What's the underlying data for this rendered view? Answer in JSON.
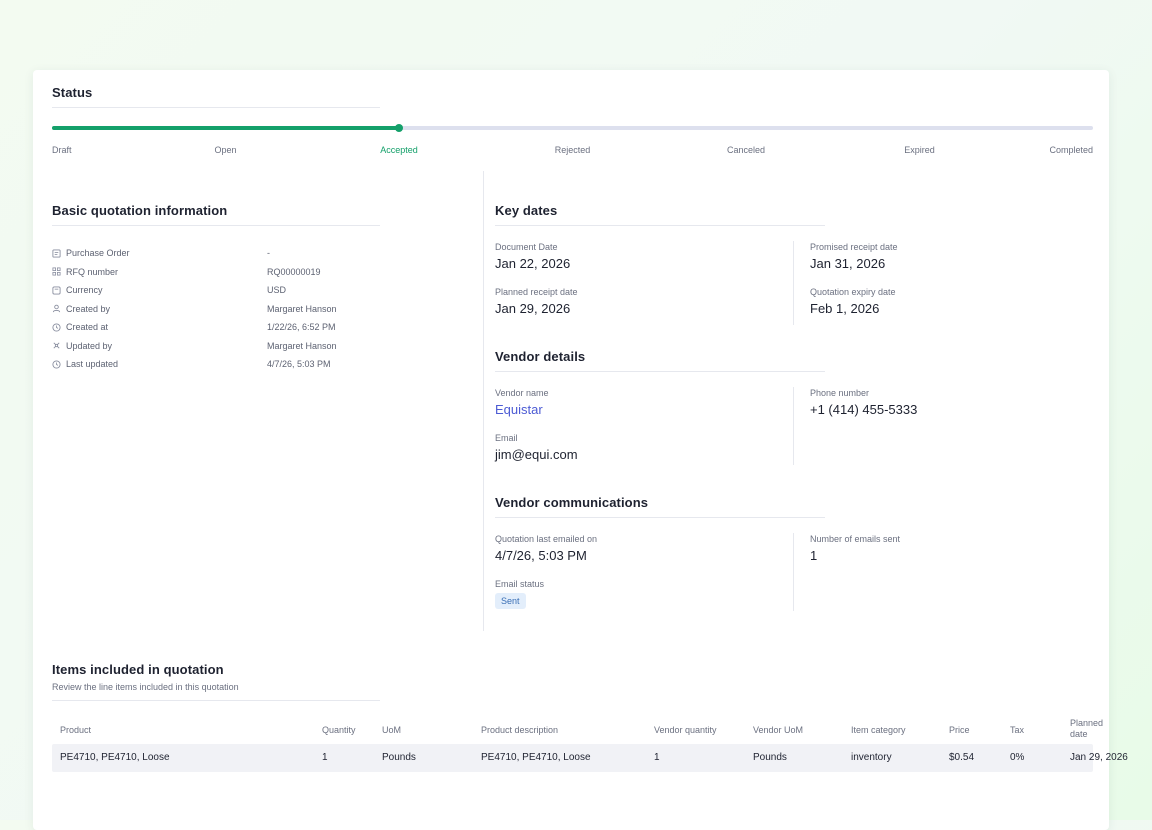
{
  "status": {
    "title": "Status",
    "progress_fraction": 0.333,
    "steps": [
      "Draft",
      "Open",
      "Accepted",
      "Rejected",
      "Canceled",
      "Expired",
      "Completed"
    ],
    "active_step": "Accepted",
    "colors": {
      "complete": "#14a06a",
      "track": "#dde0ee"
    }
  },
  "basic": {
    "title": "Basic quotation information",
    "rows": [
      {
        "label": "Purchase Order",
        "value": "-",
        "icon": "receipt-icon"
      },
      {
        "label": "RFQ number",
        "value": "RQ00000019",
        "icon": "grid-icon"
      },
      {
        "label": "Currency",
        "value": "USD",
        "icon": "currency-icon"
      },
      {
        "label": "Created by",
        "value": "Margaret Hanson",
        "icon": "user-icon"
      },
      {
        "label": "Created at",
        "value": "1/22/26, 6:52 PM",
        "icon": "clock-icon"
      },
      {
        "label": "Updated by",
        "value": "Margaret Hanson",
        "icon": "user-edit-icon"
      },
      {
        "label": "Last updated",
        "value": "4/7/26, 5:03 PM",
        "icon": "clock-icon"
      }
    ]
  },
  "key_dates": {
    "title": "Key dates",
    "document_date": {
      "label": "Document Date",
      "value": "Jan 22, 2026"
    },
    "promised_receipt": {
      "label": "Promised receipt date",
      "value": "Jan 31, 2026"
    },
    "planned_receipt": {
      "label": "Planned receipt date",
      "value": "Jan 29, 2026"
    },
    "quotation_expiry": {
      "label": "Quotation expiry date",
      "value": "Feb 1, 2026"
    }
  },
  "vendor": {
    "title": "Vendor details",
    "name": {
      "label": "Vendor name",
      "value": "Equistar"
    },
    "phone": {
      "label": "Phone number",
      "value": "+1 (414) 455-5333"
    },
    "email": {
      "label": "Email",
      "value": "jim@equi.com"
    }
  },
  "comms": {
    "title": "Vendor communications",
    "last_emailed": {
      "label": "Quotation last emailed on",
      "value": "4/7/26, 5:03 PM"
    },
    "emails_sent": {
      "label": "Number of emails sent",
      "value": "1"
    },
    "email_status": {
      "label": "Email status",
      "value": "Sent"
    }
  },
  "items": {
    "title": "Items included in quotation",
    "subtitle": "Review the line items included in this quotation",
    "columns": [
      "Product",
      "Quantity",
      "UoM",
      "Product description",
      "Vendor quantity",
      "Vendor UoM",
      "Item category",
      "Price",
      "Tax",
      "Planned date"
    ],
    "rows": [
      [
        "PE4710, PE4710, Loose",
        "1",
        "Pounds",
        "PE4710, PE4710, Loose",
        "1",
        "Pounds",
        "inventory",
        "$0.54",
        "0%",
        "Jan 29, 2026"
      ]
    ]
  }
}
